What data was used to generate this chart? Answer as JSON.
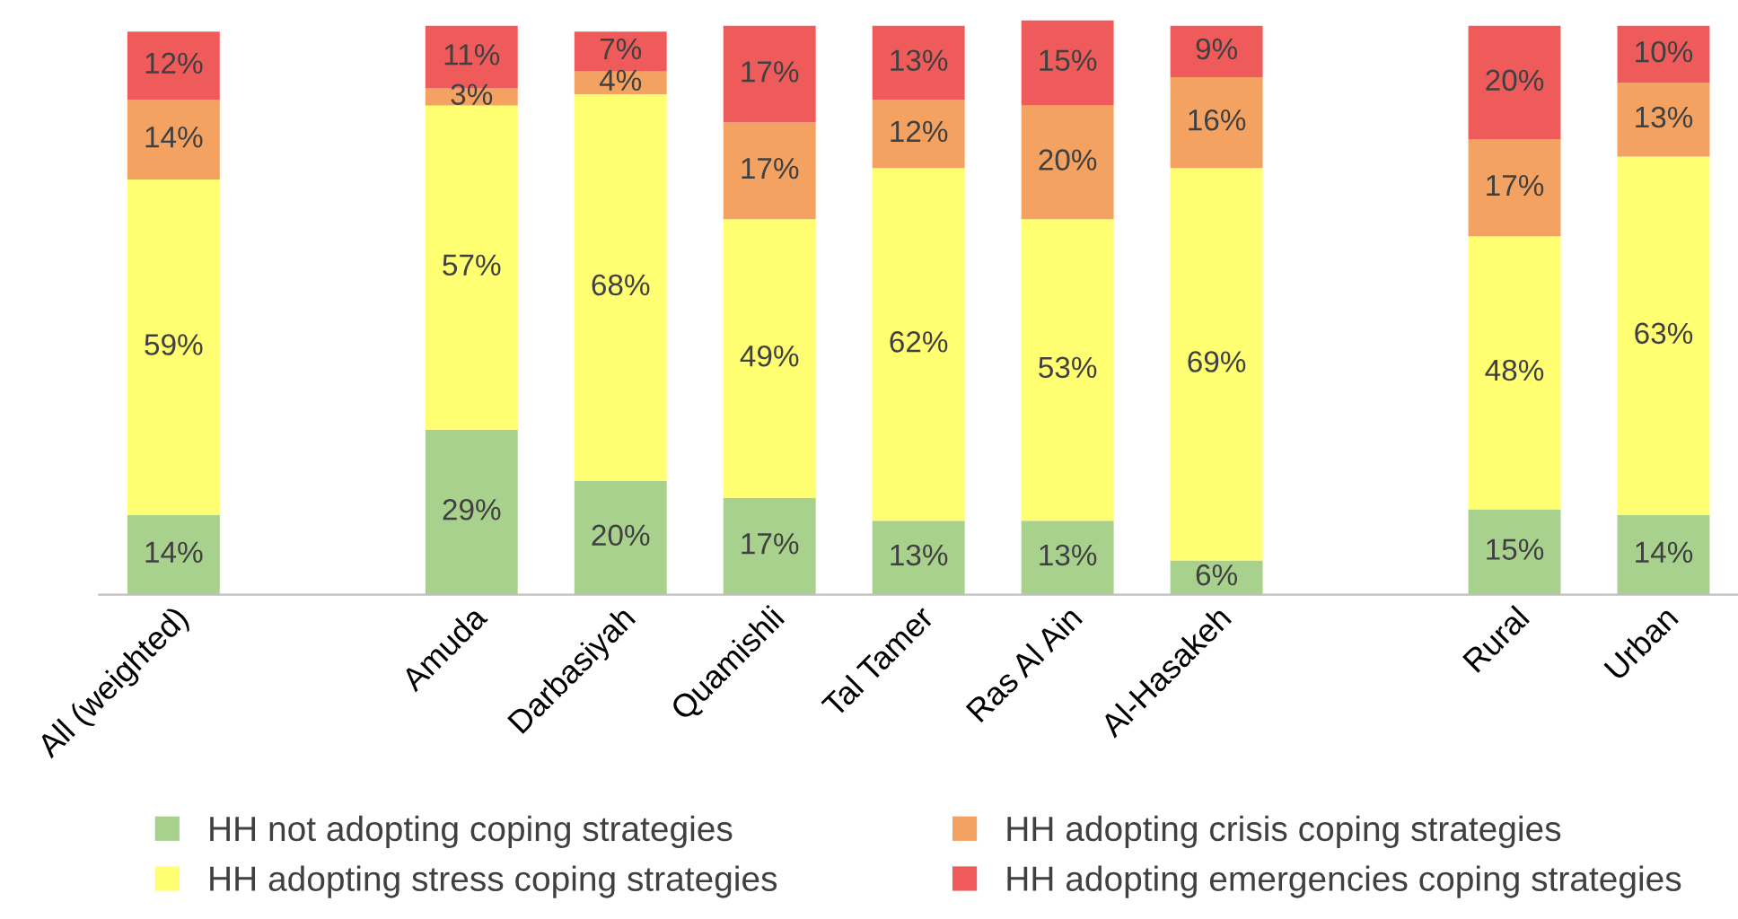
{
  "chart_data": {
    "type": "bar",
    "stacked": true,
    "categories": [
      "All (weighted)",
      null,
      "Amuda",
      "Darbasiyah",
      "Quamishli",
      "Tal Tamer",
      "Ras Al Ain",
      "Al-Hasakeh",
      null,
      "Rural",
      "Urban"
    ],
    "ylim": [
      0,
      101
    ],
    "tick_labels": "x",
    "grid": false,
    "legend": "bottom",
    "series": [
      {
        "name": "HH not adopting coping strategies",
        "color": "#a9d18e",
        "values": [
          14,
          null,
          29,
          20,
          17,
          13,
          13,
          6,
          null,
          15,
          14
        ],
        "value_labels": [
          "14%",
          null,
          "29%",
          "20%",
          "17%",
          "13%",
          "13%",
          "6%",
          null,
          "15%",
          "14%"
        ]
      },
      {
        "name": "HH adopting stress coping strategies",
        "color": "#ffff71",
        "values": [
          59,
          null,
          57,
          68,
          49,
          62,
          53,
          69,
          null,
          48,
          63
        ],
        "value_labels": [
          "59%",
          null,
          "57%",
          "68%",
          "49%",
          "62%",
          "53%",
          "69%",
          null,
          "48%",
          "63%"
        ]
      },
      {
        "name": "HH adopting crisis coping strategies",
        "color": "#f4a261",
        "values": [
          14,
          null,
          3,
          4,
          17,
          12,
          20,
          16,
          null,
          17,
          13
        ],
        "value_labels": [
          "14%",
          null,
          "3%",
          "4%",
          "17%",
          "12%",
          "20%",
          "16%",
          null,
          "17%",
          "13%"
        ]
      },
      {
        "name": "HH adopting emergencies coping strategies",
        "color": "#ef5b5b",
        "values": [
          12,
          null,
          11,
          7,
          17,
          13,
          15,
          9,
          null,
          20,
          10
        ],
        "value_labels": [
          "12%",
          null,
          "11%",
          "7%",
          "17%",
          "13%",
          "15%",
          "9%",
          null,
          "20%",
          "10%"
        ]
      }
    ]
  }
}
